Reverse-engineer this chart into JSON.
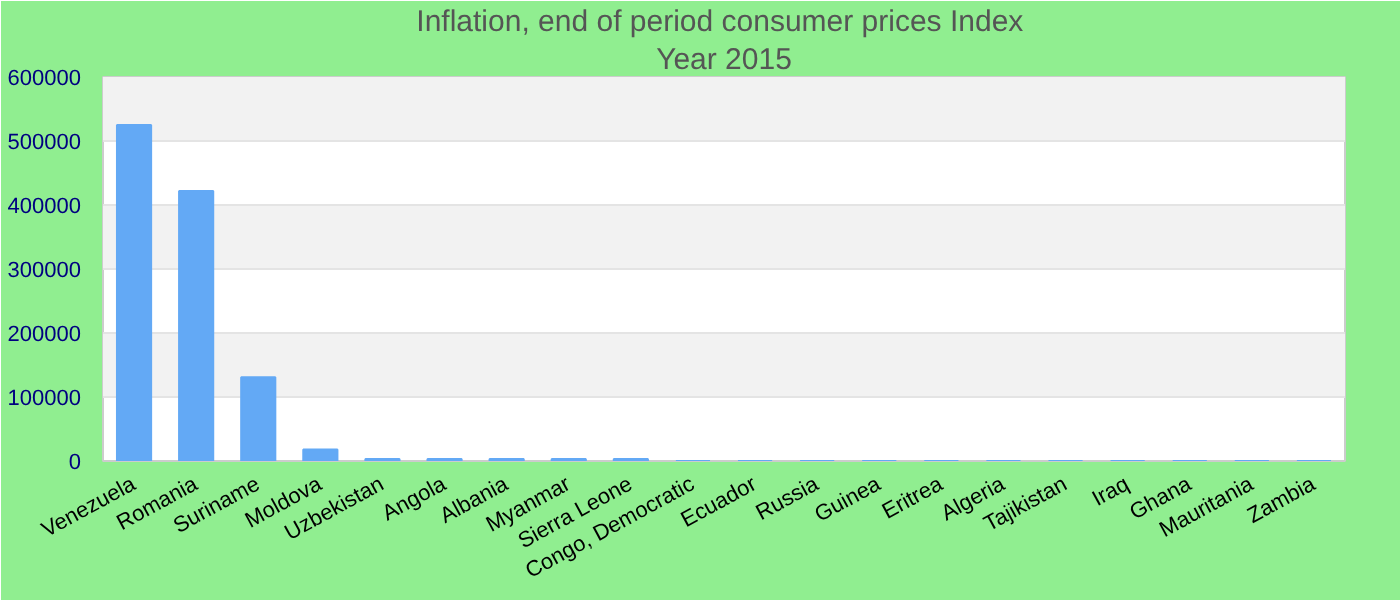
{
  "chart_data": {
    "type": "bar",
    "title": "Inflation, end of period consumer prices  Index",
    "subtitle": "Year 2015",
    "categories": [
      "Venezuela",
      "Romania",
      "Suriname",
      "Moldova",
      "Uzbekistan",
      "Angola",
      "Albania",
      "Myanmar",
      "Sierra Leone",
      "Congo, Democratic",
      "Ecuador",
      "Russia",
      "Guinea",
      "Eritrea",
      "Algeria",
      "Tajikistan",
      "Iraq",
      "Ghana",
      "Mauritania",
      "Zambia"
    ],
    "values": [
      525000,
      422000,
      131000,
      18000,
      3000,
      3000,
      3000,
      3000,
      3000,
      0,
      0,
      0,
      0,
      0,
      0,
      0,
      0,
      0,
      0,
      0
    ],
    "color": "#63a9f5",
    "ylim": [
      0,
      600000
    ],
    "yticks": [
      0,
      100000,
      200000,
      300000,
      400000,
      500000,
      600000
    ],
    "grid": "y"
  }
}
